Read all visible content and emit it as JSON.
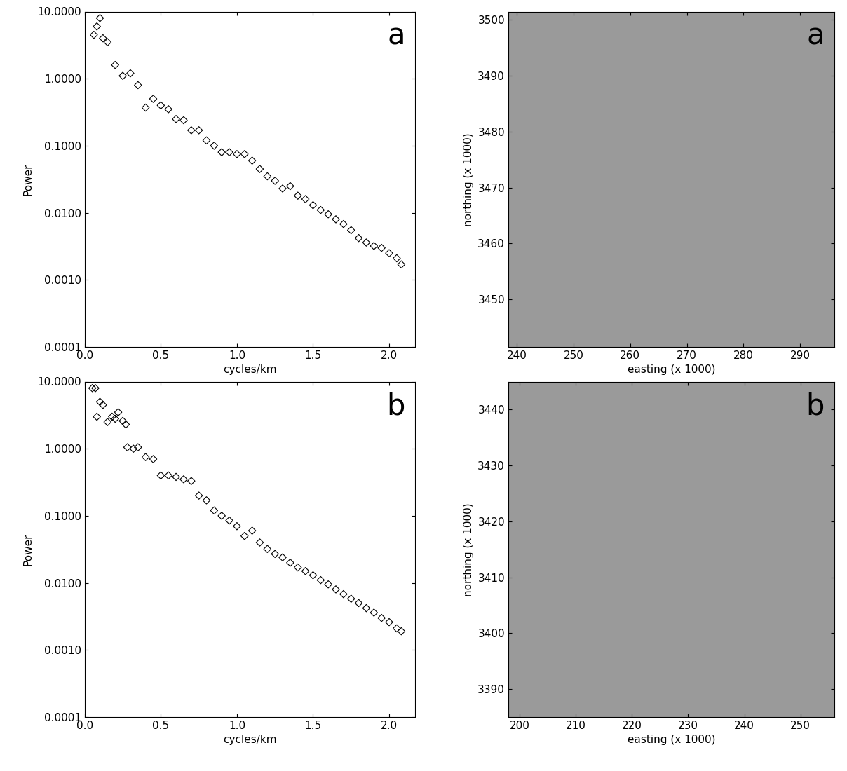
{
  "chart_data": [
    {
      "type": "scatter",
      "annotation": "a",
      "xlabel": "cycles/km",
      "ylabel": "Power",
      "log": "y",
      "marker": "diamond",
      "color": "#000000",
      "x": [
        0.06,
        0.08,
        0.1,
        0.12,
        0.15,
        0.2,
        0.25,
        0.3,
        0.35,
        0.4,
        0.45,
        0.5,
        0.55,
        0.6,
        0.65,
        0.7,
        0.75,
        0.8,
        0.85,
        0.9,
        0.95,
        1.0,
        1.05,
        1.1,
        1.15,
        1.2,
        1.25,
        1.3,
        1.35,
        1.4,
        1.45,
        1.5,
        1.55,
        1.6,
        1.65,
        1.7,
        1.75,
        1.8,
        1.85,
        1.9,
        1.95,
        2.0,
        2.05,
        2.08
      ],
      "values": [
        4.5,
        6,
        8,
        4,
        3.5,
        1.6,
        1.1,
        1.2,
        0.8,
        0.37,
        0.5,
        0.4,
        0.35,
        0.25,
        0.24,
        0.17,
        0.17,
        0.12,
        0.1,
        0.08,
        0.08,
        0.075,
        0.075,
        0.06,
        0.045,
        0.035,
        0.03,
        0.023,
        0.025,
        0.018,
        0.016,
        0.013,
        0.011,
        0.0095,
        0.008,
        0.0068,
        0.0055,
        0.0042,
        0.0036,
        0.0032,
        0.003,
        0.0025,
        0.0021,
        0.0017
      ],
      "xlim": [
        0,
        2.17
      ],
      "xticks": [
        {
          "value": 0,
          "label": "0.0"
        },
        0.5,
        {
          "value": 1,
          "label": "1.0"
        },
        1.5,
        {
          "value": 2,
          "label": "2.0"
        }
      ],
      "ylim": [
        0.0001,
        10
      ],
      "yticks": [
        {
          "value": 0.0001,
          "label": "0.0001"
        },
        {
          "value": 0.001,
          "label": "0.0010"
        },
        {
          "value": 0.01,
          "label": "0.0100"
        },
        {
          "value": 0.1,
          "label": "0.1000"
        },
        {
          "value": 1,
          "label": "1.0000"
        },
        {
          "value": 10,
          "label": "10.0000"
        }
      ]
    },
    {
      "type": "image",
      "annotation": "a",
      "xlabel": "easting (x 1000)",
      "ylabel": "northing (x 1000)",
      "xlim": [
        238.5,
        296
      ],
      "xticks": [
        240,
        250,
        260,
        270,
        280,
        290
      ],
      "ylim": [
        3441.5,
        3501.5
      ],
      "yticks": [
        3450,
        3460,
        3470,
        3480,
        3490,
        3500
      ]
    },
    {
      "type": "scatter",
      "annotation": "b",
      "xlabel": "cycles/km",
      "ylabel": "Power",
      "log": "y",
      "marker": "diamond",
      "color": "#000000",
      "x": [
        0.05,
        0.07,
        0.08,
        0.1,
        0.12,
        0.15,
        0.18,
        0.2,
        0.22,
        0.25,
        0.27,
        0.28,
        0.32,
        0.35,
        0.4,
        0.45,
        0.5,
        0.55,
        0.6,
        0.65,
        0.7,
        0.75,
        0.8,
        0.85,
        0.9,
        0.95,
        1.0,
        1.05,
        1.1,
        1.15,
        1.2,
        1.25,
        1.3,
        1.35,
        1.4,
        1.45,
        1.5,
        1.55,
        1.6,
        1.65,
        1.7,
        1.75,
        1.8,
        1.85,
        1.9,
        1.95,
        2.0,
        2.05,
        2.08
      ],
      "values": [
        8,
        8,
        3,
        5,
        4.5,
        2.5,
        3,
        2.8,
        3.5,
        2.6,
        2.3,
        1.05,
        1.0,
        1.05,
        0.75,
        0.7,
        0.4,
        0.4,
        0.38,
        0.35,
        0.33,
        0.2,
        0.17,
        0.12,
        0.1,
        0.085,
        0.07,
        0.05,
        0.06,
        0.04,
        0.032,
        0.027,
        0.024,
        0.02,
        0.017,
        0.015,
        0.013,
        0.011,
        0.0095,
        0.008,
        0.0068,
        0.0058,
        0.005,
        0.0042,
        0.0036,
        0.003,
        0.0026,
        0.0021,
        0.0019
      ],
      "xlim": [
        0,
        2.17
      ],
      "xticks": [
        {
          "value": 0,
          "label": "0.0"
        },
        0.5,
        {
          "value": 1,
          "label": "1.0"
        },
        1.5,
        {
          "value": 2,
          "label": "2.0"
        }
      ],
      "ylim": [
        0.0001,
        10
      ],
      "yticks": [
        {
          "value": 0.0001,
          "label": "0.0001"
        },
        {
          "value": 0.001,
          "label": "0.0010"
        },
        {
          "value": 0.01,
          "label": "0.0100"
        },
        {
          "value": 0.1,
          "label": "0.1000"
        },
        {
          "value": 1,
          "label": "1.0000"
        },
        {
          "value": 10,
          "label": "10.0000"
        }
      ]
    },
    {
      "type": "image",
      "annotation": "b",
      "xlabel": "easting (x 1000)",
      "ylabel": "northing (x 1000)",
      "xlim": [
        198,
        256
      ],
      "xticks": [
        200,
        210,
        220,
        230,
        240,
        250
      ],
      "ylim": [
        3385,
        3445
      ],
      "yticks": [
        3390,
        3400,
        3410,
        3420,
        3430,
        3440
      ]
    }
  ]
}
